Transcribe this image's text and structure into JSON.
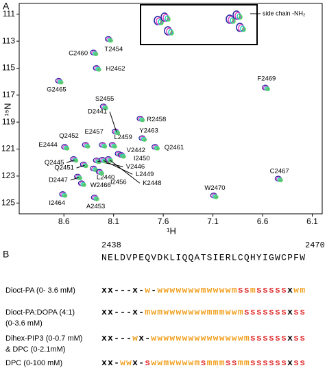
{
  "panel_labels": [
    "A",
    "B"
  ],
  "chart_data": {
    "type": "scatter",
    "x_label": "¹H",
    "y_label": "¹⁵N",
    "xlim": [
      9.05,
      6.0
    ],
    "ylim": [
      110.2,
      125.8
    ],
    "xticks": [
      8.6,
      8.1,
      7.6,
      7.1,
      6.6,
      6.1
    ],
    "yticks": [
      111,
      113,
      115,
      117,
      119,
      121,
      123,
      125
    ],
    "inset_label": "side chain -NH₂",
    "colors": [
      "#2020a0",
      "#e040c0",
      "#20d0c0",
      "#60d060"
    ],
    "peaks": [
      {
        "label": "T2454",
        "x": 8.14,
        "y": 112.9
      },
      {
        "label": "C2460",
        "x": 8.29,
        "y": 113.9
      },
      {
        "label": "H2462",
        "x": 8.26,
        "y": 115.05
      },
      {
        "label": "G2465",
        "x": 8.64,
        "y": 116.0
      },
      {
        "label": "F2469",
        "x": 6.56,
        "y": 116.5
      },
      {
        "label": "S2455",
        "x": 8.19,
        "y": 117.9
      },
      {
        "label": "R2458",
        "x": 7.82,
        "y": 118.8
      },
      {
        "label": "D2441",
        "x": 8.07,
        "y": 119.75
      },
      {
        "label": "Y2463",
        "x": 7.8,
        "y": 120.25
      },
      {
        "label": "Q2452",
        "x": 8.37,
        "y": 120.75
      },
      {
        "label": "E2457",
        "x": 8.2,
        "y": 120.75
      },
      {
        "label": "L2459",
        "x": 8.1,
        "y": 120.75
      },
      {
        "label": "E2444",
        "x": 8.58,
        "y": 120.9
      },
      {
        "label": "Q2461",
        "x": 7.67,
        "y": 120.9
      },
      {
        "label": "V2442",
        "x": 8.04,
        "y": 121.4
      },
      {
        "label": "I2450",
        "x": 8.01,
        "y": 121.5
      },
      {
        "label": "Q2445",
        "x": 8.49,
        "y": 121.8
      },
      {
        "label": "V2446",
        "x": 8.26,
        "y": 121.9
      },
      {
        "label": "L2449",
        "x": 8.2,
        "y": 121.85
      },
      {
        "label": "K2448",
        "x": 8.14,
        "y": 121.8
      },
      {
        "label": "C2467",
        "x": 6.43,
        "y": 123.25
      },
      {
        "label": "Q2451",
        "x": 8.39,
        "y": 122.2
      },
      {
        "label": "L2440",
        "x": 8.29,
        "y": 122.5
      },
      {
        "label": "D2447",
        "x": 8.45,
        "y": 123.1
      },
      {
        "label": "I2456",
        "x": 8.23,
        "y": 122.75
      },
      {
        "label": "W2466",
        "x": 8.41,
        "y": 123.6
      },
      {
        "label": "W2470",
        "x": 7.08,
        "y": 124.5
      },
      {
        "label": "I2464",
        "x": 8.6,
        "y": 124.4
      },
      {
        "label": "A2453",
        "x": 8.28,
        "y": 124.65
      }
    ]
  },
  "panel_b": {
    "start": "2438",
    "end": "2470",
    "sequence": "NELDVPEQVDKLIQQATSIERLCQHYIGWCPFW",
    "code_colors": {
      "x": "#000000",
      "-": "#000000",
      "w": "#f0a020",
      "m": "#f0a020",
      "s": "#e03030"
    },
    "rows": [
      {
        "label": [
          "Dioct-PA (0- 3.6 mM)"
        ],
        "code": "xx---x-w-wwwwwwwmwwwwmssmsssssxwm"
      },
      {
        "label": [
          "Dioct-PA:DOPA (4:1)",
          " (0-3.6 mM)"
        ],
        "code": "xx---x-mwmwwwwwwwmmmwwmsssssssxss"
      },
      {
        "label": [
          "Dihex-PIP3 (0-0.7 mM)",
          "& DPC (0-2.1mM)"
        ],
        "code": "xx---wx-wwwwwwwwwwwwwwwmssssssxss"
      },
      {
        "label": [
          "DPC (0-100 mM)"
        ],
        "code": "xx-wwx-swwmwwwwmsmmmssmmssssssxss"
      }
    ]
  }
}
